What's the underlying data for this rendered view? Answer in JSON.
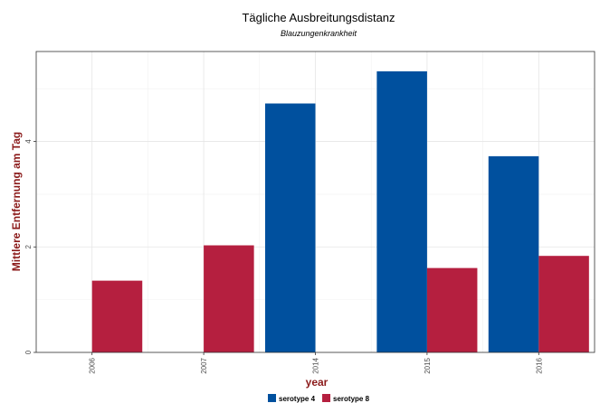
{
  "chart_data": {
    "type": "bar",
    "title": "Tägliche Ausbreitungsdistanz",
    "subtitle": "Blauzungenkrankheit",
    "xlabel": "year",
    "ylabel": "Mittlere Entfernung am Tag",
    "categories": [
      "2006",
      "2007",
      "2014",
      "2015",
      "2016"
    ],
    "series": [
      {
        "name": "serotype 4",
        "color": "#00509e",
        "values": [
          null,
          null,
          4.72,
          5.33,
          3.72
        ]
      },
      {
        "name": "serotype 8",
        "color": "#b51f3f",
        "values": [
          1.36,
          2.03,
          null,
          1.6,
          1.83
        ]
      }
    ],
    "ylim": [
      0,
      5.5
    ],
    "yticks": [
      0,
      2,
      4
    ],
    "grid": true,
    "legend_position": "bottom"
  }
}
